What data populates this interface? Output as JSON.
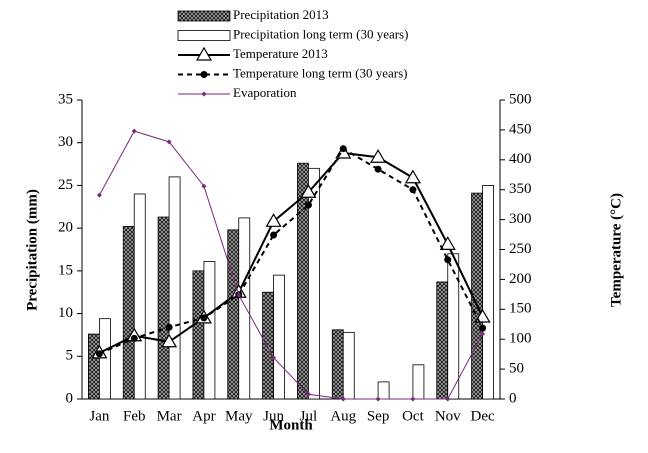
{
  "chart_data": {
    "type": "combo",
    "xlabel": "Month",
    "ylabel": "Precipitation  (mm)",
    "y2label": "Temperature (°C)",
    "categories": [
      "Jan",
      "Feb",
      "Mar",
      "Apr",
      "May",
      "Jun",
      "Jul",
      "Aug",
      "Sep",
      "Oct",
      "Nov",
      "Dec"
    ],
    "ylim": [
      0,
      35
    ],
    "yticks": [
      0,
      5,
      10,
      15,
      20,
      25,
      30,
      35
    ],
    "y2lim": [
      0,
      500
    ],
    "y2ticks": [
      0,
      50,
      100,
      150,
      200,
      250,
      300,
      350,
      400,
      450,
      500
    ],
    "legend": "top",
    "series": [
      {
        "name": "Precipitation 2013",
        "type": "bar",
        "pattern": "crosshatch",
        "color": "#333333",
        "values": [
          7.6,
          20.2,
          21.3,
          15,
          19.8,
          12.5,
          27.6,
          8.1,
          0,
          0,
          13.7,
          24.1
        ]
      },
      {
        "name": "Precipitation long term (30 years)",
        "type": "bar",
        "color": "#ffffff",
        "values": [
          9.4,
          24,
          26,
          16.1,
          21.2,
          14.5,
          27,
          7.8,
          2,
          4,
          17,
          25
        ]
      },
      {
        "name": "Temperature 2013",
        "type": "line",
        "marker": "triangle",
        "dash": false,
        "color": "#000000",
        "values": [
          5.4,
          7.4,
          6.7,
          9.5,
          12.5,
          20.8,
          24.2,
          28.8,
          28.3,
          25.9,
          18.1,
          9.6
        ]
      },
      {
        "name": "Temperature long term (30 years)",
        "type": "line",
        "marker": "circle",
        "dash": true,
        "color": "#000000",
        "values": [
          5.3,
          7.1,
          8.4,
          9.5,
          12.2,
          19.2,
          22.7,
          29.3,
          26.9,
          24.5,
          16.3,
          8.3
        ]
      },
      {
        "name": "Evaporation",
        "type": "line",
        "marker": "diamond",
        "dash": false,
        "color": "#7a2a7a",
        "axis": "y2",
        "values": [
          341,
          448,
          430,
          356,
          174,
          69,
          8,
          0,
          0,
          0,
          0,
          109
        ]
      }
    ]
  }
}
